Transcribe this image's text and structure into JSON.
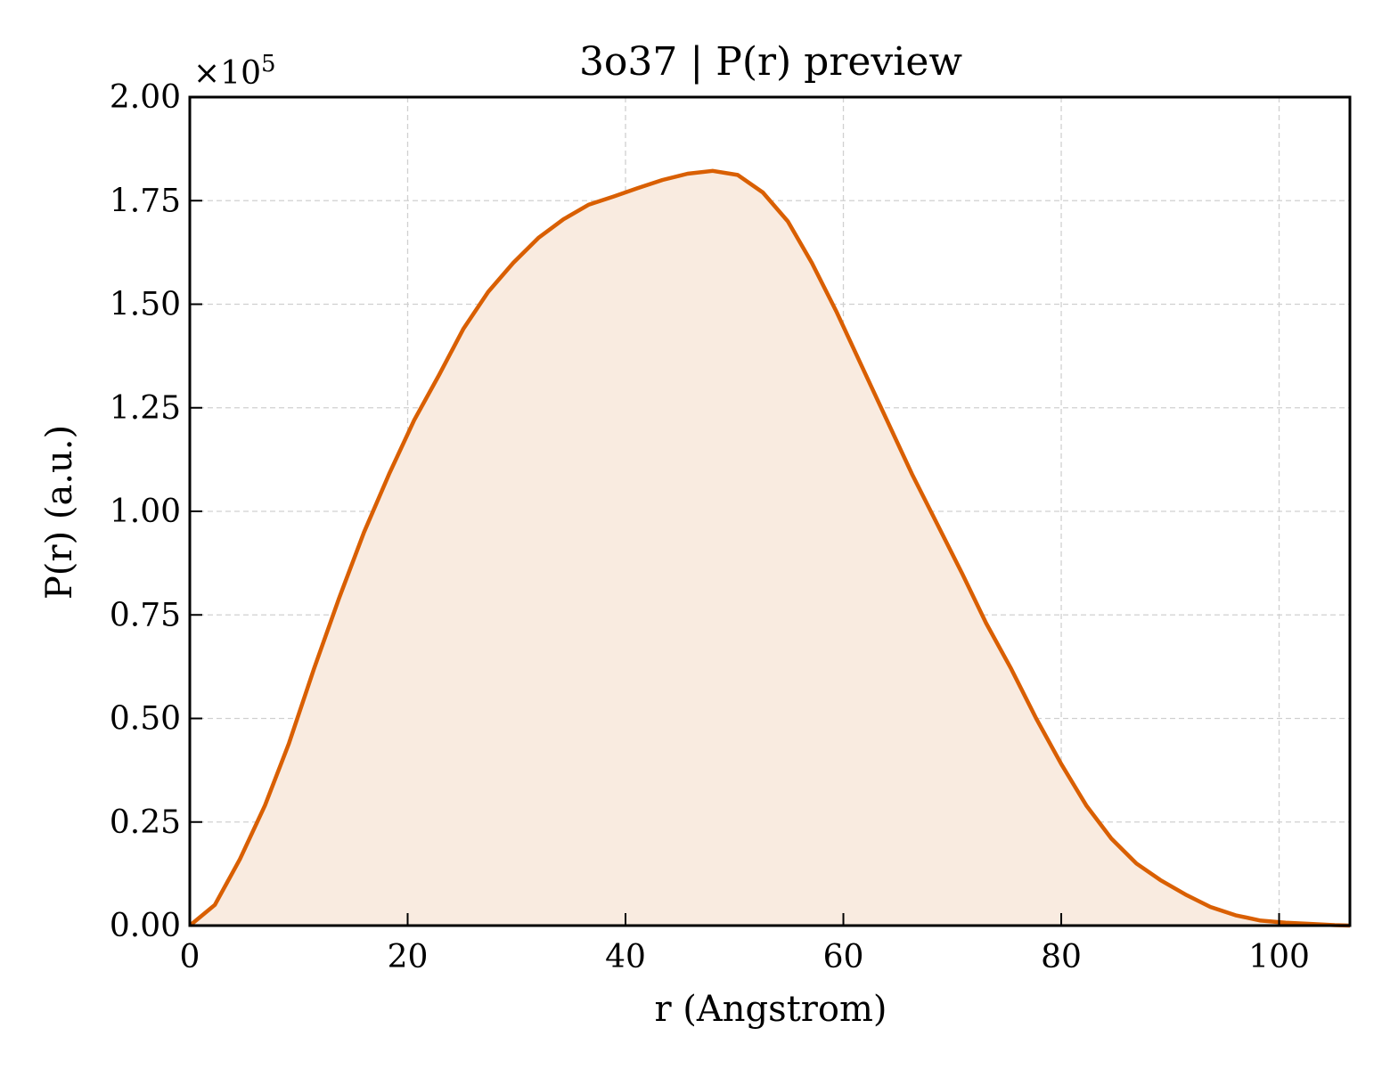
{
  "chart_data": {
    "type": "area",
    "title": "3o37 | P(r) preview",
    "xlabel": "r (Angstrom)",
    "ylabel": "P(r) (a.u.)",
    "y_multiplier_label": "×10",
    "y_multiplier_exponent": "5",
    "xlim": [
      0,
      106.5
    ],
    "ylim": [
      0,
      2.0
    ],
    "x_ticks": [
      0,
      20,
      40,
      60,
      80,
      100
    ],
    "x_tick_labels": [
      "0",
      "20",
      "40",
      "60",
      "80",
      "100"
    ],
    "y_ticks": [
      0,
      0.25,
      0.5,
      0.75,
      1.0,
      1.25,
      1.5,
      1.75,
      2.0
    ],
    "y_tick_labels": [
      "0.00",
      "0.25",
      "0.50",
      "0.75",
      "1.00",
      "1.25",
      "1.50",
      "1.75",
      "2.00"
    ],
    "grid": true,
    "line_color": "#d95f02",
    "fill_color": "#f9ebe0",
    "series": [
      {
        "x": [
          0,
          2.3,
          4.6,
          6.9,
          9.1,
          11.4,
          13.7,
          16.0,
          18.3,
          20.6,
          22.9,
          25.1,
          27.4,
          29.7,
          32.0,
          34.3,
          36.6,
          38.9,
          41.1,
          43.4,
          45.7,
          48.0,
          50.3,
          52.6,
          54.9,
          57.1,
          59.4,
          61.7,
          64.0,
          66.3,
          68.6,
          70.9,
          73.1,
          75.4,
          77.7,
          80.0,
          82.3,
          84.6,
          86.9,
          89.1,
          91.4,
          93.7,
          96.0,
          98.3,
          100.6,
          102.9,
          105.1,
          106.5
        ],
        "y": [
          0.0,
          0.05,
          0.16,
          0.29,
          0.44,
          0.62,
          0.79,
          0.95,
          1.09,
          1.22,
          1.33,
          1.44,
          1.53,
          1.6,
          1.66,
          1.705,
          1.74,
          1.76,
          1.78,
          1.8,
          1.815,
          1.822,
          1.812,
          1.77,
          1.7,
          1.6,
          1.48,
          1.35,
          1.22,
          1.09,
          0.97,
          0.85,
          0.73,
          0.62,
          0.5,
          0.39,
          0.29,
          0.21,
          0.15,
          0.11,
          0.075,
          0.045,
          0.025,
          0.012,
          0.007,
          0.004,
          0.001,
          0.0
        ]
      }
    ]
  }
}
